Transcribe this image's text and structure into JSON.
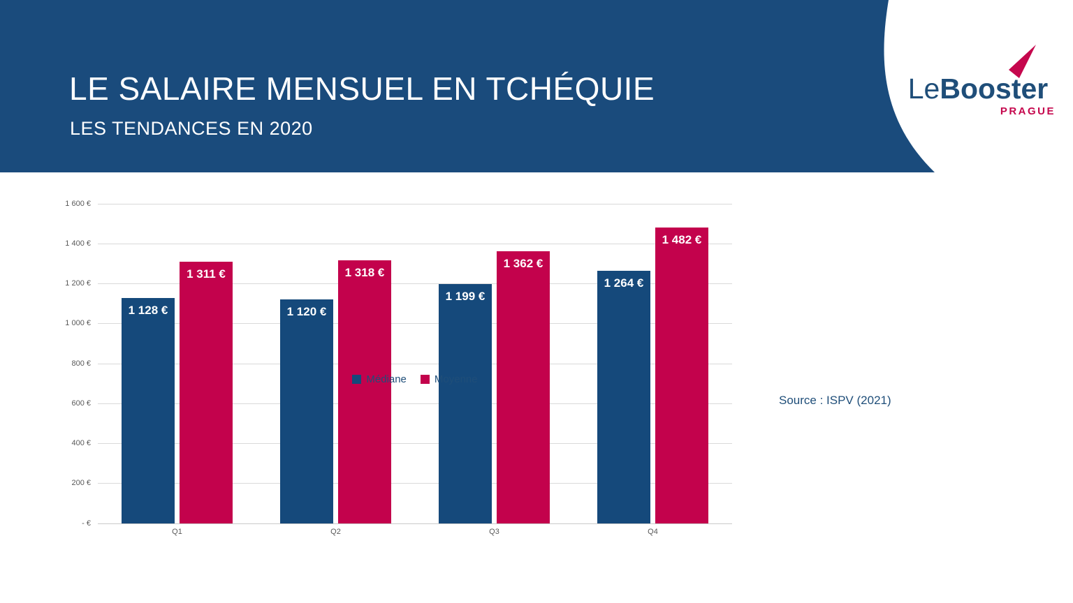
{
  "header": {
    "title": "LE SALAIRE MENSUEL EN TCHÉQUIE",
    "subtitle": "LES TENDANCES EN 2020",
    "background_color": "#1A4B7C"
  },
  "logo": {
    "name_light": "Le",
    "name_bold": "Booster",
    "city": "PRAGUE",
    "navy_color": "#1F4E79",
    "red_color": "#C5074D"
  },
  "chart_data": {
    "type": "bar",
    "title": "",
    "xlabel": "",
    "ylabel": "",
    "ylim": [
      0,
      1600
    ],
    "grid": true,
    "legend_position": "bottom",
    "categories": [
      "Q1",
      "Q2",
      "Q3",
      "Q4"
    ],
    "series": [
      {
        "name": "Médiane",
        "color": "#15497B",
        "values": [
          1128,
          1120,
          1199,
          1264
        ],
        "labels": [
          "1 128 €",
          "1 120 €",
          "1 199 €",
          "1 264 €"
        ]
      },
      {
        "name": "Moyenne",
        "color": "#C3024C",
        "values": [
          1311,
          1318,
          1362,
          1482
        ],
        "labels": [
          "1 311 €",
          "1 318 €",
          "1 362 €",
          "1 482 €"
        ]
      }
    ],
    "y_ticks": [
      {
        "value": 0,
        "label": "- €"
      },
      {
        "value": 200,
        "label": "200 €"
      },
      {
        "value": 400,
        "label": "400 €"
      },
      {
        "value": 600,
        "label": "600 €"
      },
      {
        "value": 800,
        "label": "800 €"
      },
      {
        "value": 1000,
        "label": "1 000 €"
      },
      {
        "value": 1200,
        "label": "1 200 €"
      },
      {
        "value": 1400,
        "label": "1 400 €"
      },
      {
        "value": 1600,
        "label": "1 600 €"
      }
    ],
    "gridline_color": "#D9D9D9",
    "axis_line_color": "#C9C9C9",
    "tick_text_color": "#595959",
    "legend_text_color": "#1F4E79"
  },
  "footer": {
    "source": "Source : ISPV (2021)",
    "source_color": "#1F4E79"
  }
}
